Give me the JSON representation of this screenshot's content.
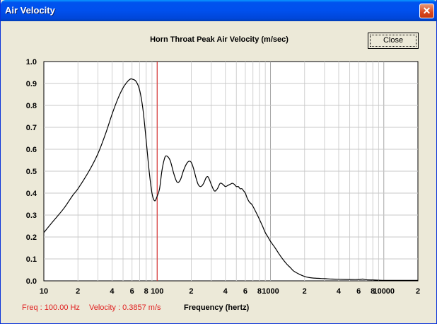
{
  "window": {
    "title": "Air Velocity",
    "close_glyph": "✕"
  },
  "close_button": {
    "label": "Close"
  },
  "status": {
    "freq": "Freq : 100.00 Hz",
    "velocity": "Velocity : 0.3857 m/s"
  },
  "chart_data": {
    "type": "line",
    "title": "Horn Throat Peak Air Velocity (m/sec)",
    "xlabel": "Frequency (hertz)",
    "ylabel": "",
    "x_scale": "log",
    "xlim": [
      10,
      20000
    ],
    "ylim": [
      0,
      1.0
    ],
    "grid": true,
    "y_ticks": [
      "0.0",
      "0.1",
      "0.2",
      "0.3",
      "0.4",
      "0.5",
      "0.6",
      "0.7",
      "0.8",
      "0.9",
      "1.0"
    ],
    "x_ticks": [
      {
        "value": 10,
        "label": "10"
      },
      {
        "value": 20,
        "label": "2"
      },
      {
        "value": 40,
        "label": "4"
      },
      {
        "value": 60,
        "label": "6"
      },
      {
        "value": 80,
        "label": "8"
      },
      {
        "value": 100,
        "label": "100"
      },
      {
        "value": 200,
        "label": "2"
      },
      {
        "value": 400,
        "label": "4"
      },
      {
        "value": 600,
        "label": "6"
      },
      {
        "value": 800,
        "label": "8"
      },
      {
        "value": 1000,
        "label": "1000"
      },
      {
        "value": 2000,
        "label": "2"
      },
      {
        "value": 4000,
        "label": "4"
      },
      {
        "value": 6000,
        "label": "6"
      },
      {
        "value": 8000,
        "label": "8"
      },
      {
        "value": 10000,
        "label": "10000"
      },
      {
        "value": 20000,
        "label": "2"
      }
    ],
    "cursor_x": 100,
    "cursor_color": "#E02020",
    "series": [
      {
        "x": [
          10,
          12,
          15,
          18,
          20,
          25,
          30,
          35,
          40,
          45,
          50,
          55,
          58,
          60,
          65,
          70,
          75,
          80,
          85,
          90,
          95,
          100,
          105,
          110,
          115,
          120,
          130,
          140,
          150,
          160,
          170,
          180,
          190,
          200,
          210,
          220,
          230,
          240,
          250,
          260,
          270,
          280,
          290,
          300,
          320,
          340,
          360,
          380,
          400,
          420,
          440,
          460,
          480,
          500,
          520,
          540,
          560,
          580,
          600,
          620,
          650,
          680,
          700,
          750,
          800,
          850,
          900,
          950,
          1000,
          1100,
          1200,
          1300,
          1400,
          1500,
          1600,
          1800,
          2000,
          2200,
          2500,
          3000,
          3500,
          4000,
          5000,
          6000,
          6500,
          7000,
          8000,
          9000,
          10000,
          11000,
          12000,
          14000,
          16000,
          18000,
          20000
        ],
        "y": [
          0.22,
          0.27,
          0.33,
          0.39,
          0.42,
          0.5,
          0.58,
          0.67,
          0.76,
          0.83,
          0.88,
          0.91,
          0.92,
          0.92,
          0.91,
          0.87,
          0.78,
          0.64,
          0.5,
          0.4,
          0.365,
          0.386,
          0.42,
          0.5,
          0.55,
          0.57,
          0.55,
          0.49,
          0.45,
          0.46,
          0.5,
          0.53,
          0.545,
          0.54,
          0.51,
          0.47,
          0.44,
          0.43,
          0.435,
          0.45,
          0.47,
          0.475,
          0.46,
          0.44,
          0.41,
          0.42,
          0.445,
          0.44,
          0.43,
          0.435,
          0.44,
          0.445,
          0.44,
          0.43,
          0.43,
          0.42,
          0.42,
          0.41,
          0.4,
          0.38,
          0.36,
          0.35,
          0.34,
          0.31,
          0.28,
          0.25,
          0.22,
          0.2,
          0.18,
          0.15,
          0.12,
          0.095,
          0.075,
          0.06,
          0.045,
          0.03,
          0.02,
          0.015,
          0.012,
          0.01,
          0.008,
          0.007,
          0.006,
          0.006,
          0.008,
          0.005,
          0.004,
          0.003,
          0.002,
          0.002,
          0.002,
          0.002,
          0.002,
          0.002,
          0.002
        ]
      }
    ]
  }
}
